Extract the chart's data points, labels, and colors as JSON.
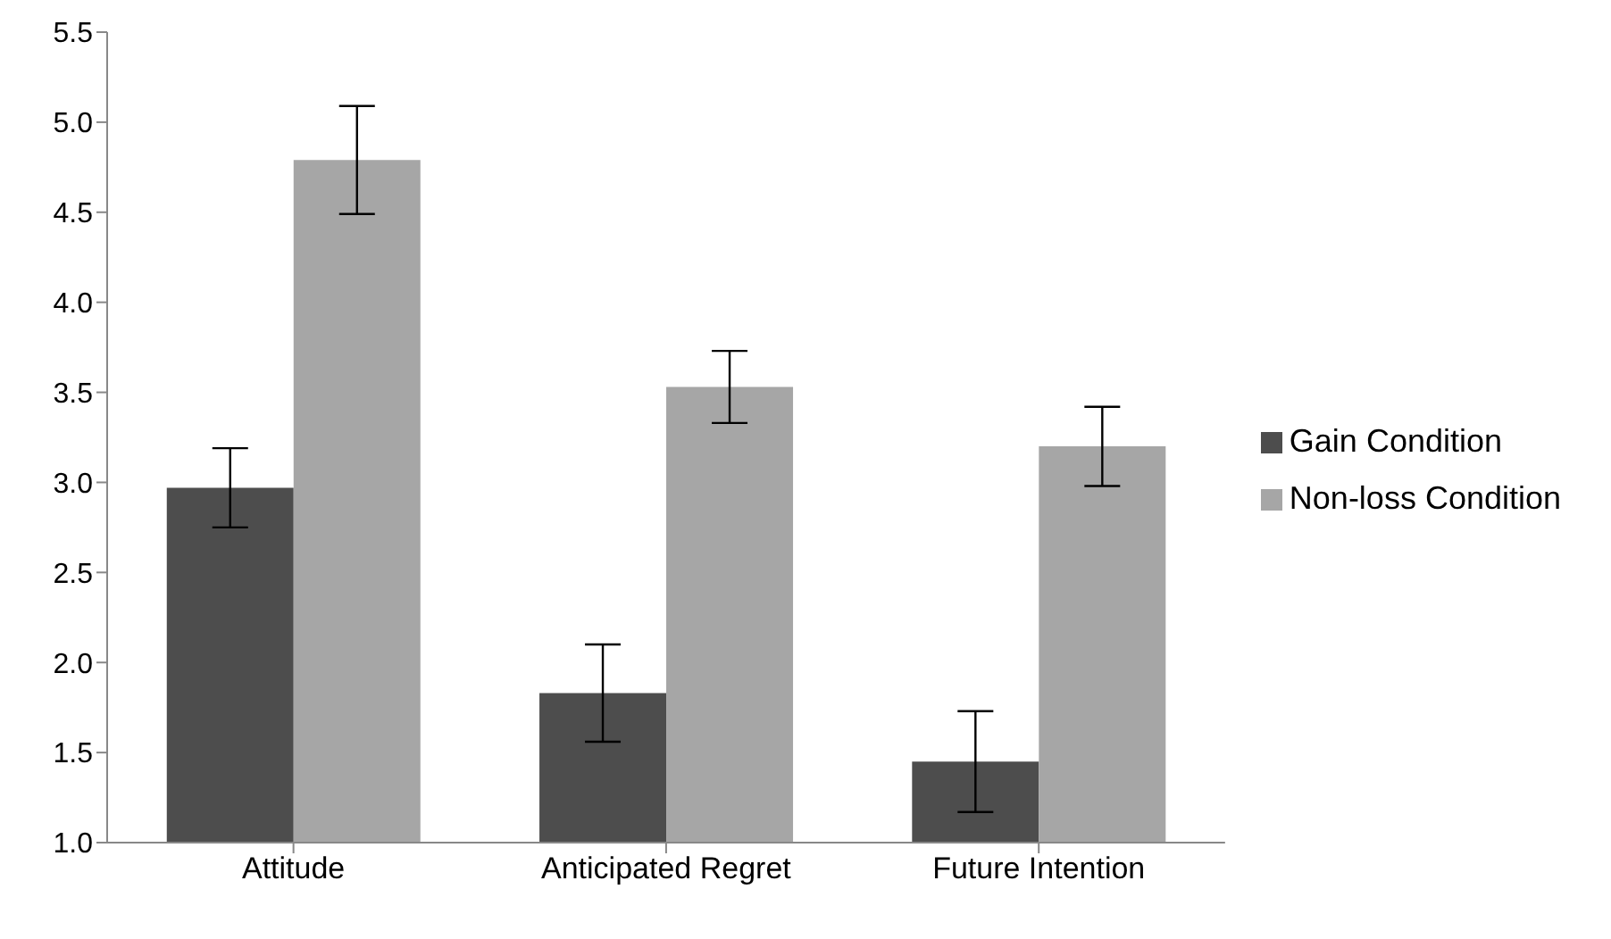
{
  "chart_data": {
    "type": "bar",
    "categories": [
      "Attitude",
      "Anticipated Regret",
      "Future Intention"
    ],
    "series": [
      {
        "name": "Gain Condition",
        "color": "#4d4d4d",
        "values": [
          2.97,
          1.83,
          1.45
        ],
        "errors": [
          0.22,
          0.27,
          0.28
        ]
      },
      {
        "name": "Non-loss Condition",
        "color": "#a6a6a6",
        "values": [
          4.79,
          3.53,
          3.2
        ],
        "errors": [
          0.3,
          0.2,
          0.22
        ]
      }
    ],
    "ylim": [
      1.0,
      5.5
    ],
    "yticks": [
      {
        "value": 1,
        "label": "1.0"
      },
      {
        "value": 1.5,
        "label": "1.5"
      },
      {
        "value": 2,
        "label": "2.0"
      },
      {
        "value": 2.5,
        "label": "2.5"
      },
      {
        "value": 3,
        "label": "3.0"
      },
      {
        "value": 3.5,
        "label": "3.5"
      },
      {
        "value": 4,
        "label": "4.0"
      },
      {
        "value": 4.5,
        "label": "4.5"
      },
      {
        "value": 5,
        "label": "5.0"
      },
      {
        "value": 5.5,
        "label": "5.5"
      }
    ],
    "grid": false,
    "legend": "right"
  }
}
